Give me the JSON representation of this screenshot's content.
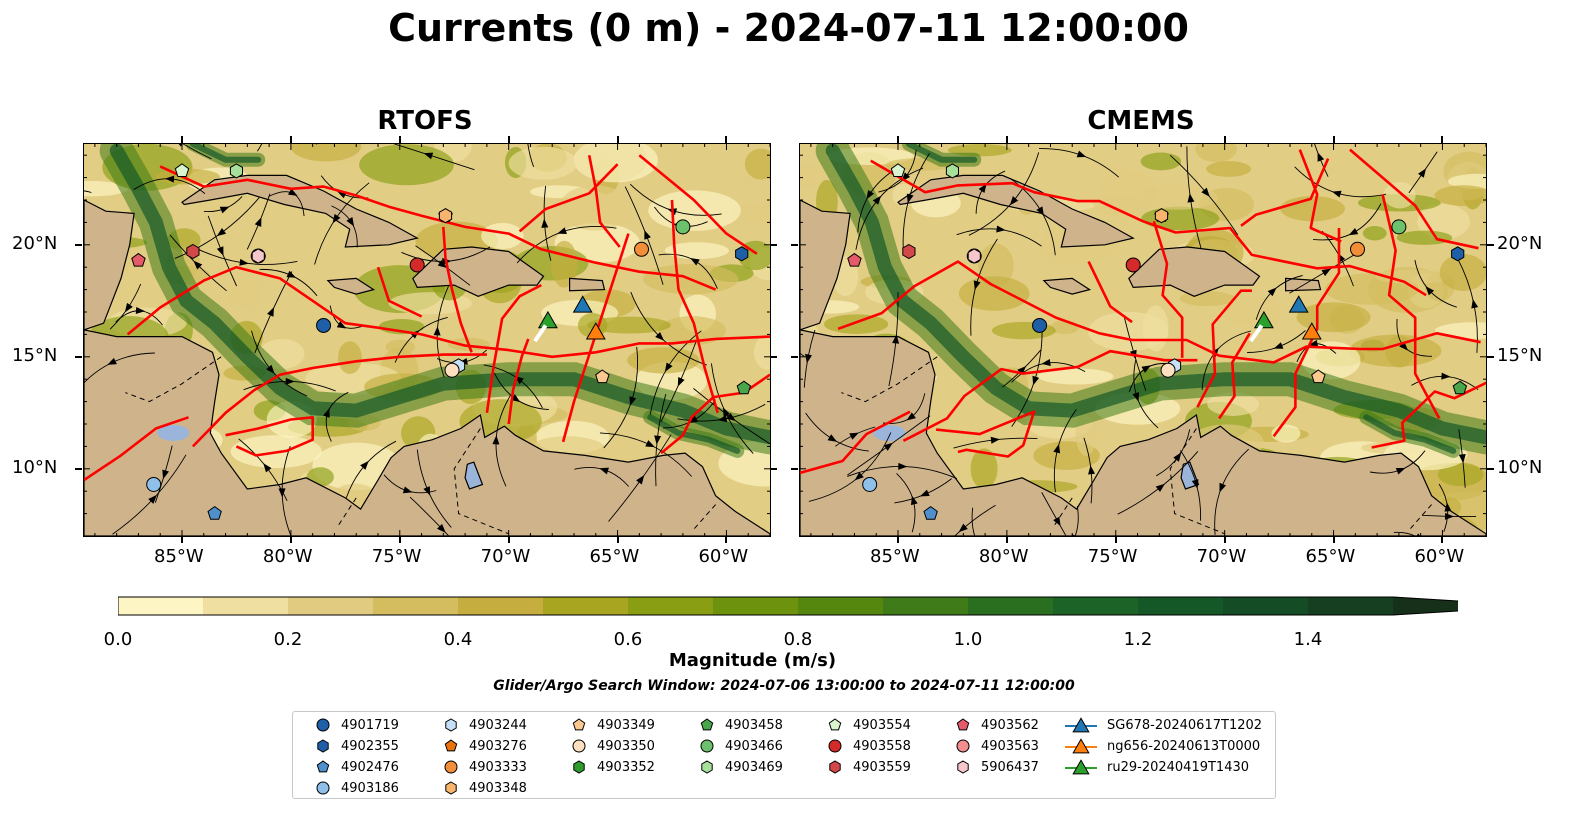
{
  "title": "Currents (0 m) - 2024-07-11 12:00:00",
  "panels": [
    {
      "title": "RTOFS"
    },
    {
      "title": "CMEMS"
    }
  ],
  "axes": {
    "lon_labels": [
      "85°W",
      "80°W",
      "75°W",
      "70°W",
      "65°W",
      "60°W"
    ],
    "lat_labels": [
      "20°N",
      "15°N",
      "10°N"
    ],
    "extent": {
      "lon": [
        -89.5,
        -58.0
      ],
      "lat": [
        7.0,
        24.5
      ]
    }
  },
  "colorbar": {
    "label": "Magnitude (m/s)",
    "ticks": [
      "0.0",
      "0.2",
      "0.4",
      "0.6",
      "0.8",
      "1.0",
      "1.2",
      "1.4"
    ],
    "range": [
      0.0,
      1.5
    ],
    "extend": "max",
    "colors": [
      "#fdf6c4",
      "#efe0a2",
      "#e0cb80",
      "#d3bd5f",
      "#c5ad3f",
      "#a8a521",
      "#8a9e14",
      "#6d930e",
      "#55870f",
      "#3f7b18",
      "#2a6e20",
      "#1c6328",
      "#155828",
      "#144c25",
      "#163f21",
      "#17301a"
    ]
  },
  "search_window": "Glider/Argo Search Window: 2024-07-06 13:00:00 to 2024-07-11 12:00:00",
  "legend": [
    {
      "label": "4901719",
      "marker": "circle",
      "color": "#1f5fa8"
    },
    {
      "label": "4902355",
      "marker": "hexagon",
      "color": "#1f5fa8"
    },
    {
      "label": "4902476",
      "marker": "pentagon",
      "color": "#4f8fcb"
    },
    {
      "label": "4903186",
      "marker": "circle",
      "color": "#8ec0ea"
    },
    {
      "label": "4903244",
      "marker": "hexagon",
      "color": "#c6e0f7"
    },
    {
      "label": "4903276",
      "marker": "pentagon",
      "color": "#e8730c"
    },
    {
      "label": "4903333",
      "marker": "circle",
      "color": "#f28e37"
    },
    {
      "label": "4903348",
      "marker": "hexagon",
      "color": "#f8b46d"
    },
    {
      "label": "4903349",
      "marker": "pentagon",
      "color": "#fbc98f"
    },
    {
      "label": "4903350",
      "marker": "circle",
      "color": "#fde0bf"
    },
    {
      "label": "4903352",
      "marker": "hexagon",
      "color": "#2c9b2c"
    },
    {
      "label": "4903458",
      "marker": "pentagon",
      "color": "#4aa64a"
    },
    {
      "label": "4903466",
      "marker": "circle",
      "color": "#6cc26c"
    },
    {
      "label": "4903469",
      "marker": "hexagon",
      "color": "#a6e09b"
    },
    {
      "label": "4903554",
      "marker": "pentagon",
      "color": "#d8f5cf"
    },
    {
      "label": "4903558",
      "marker": "circle",
      "color": "#d42a2a"
    },
    {
      "label": "4903559",
      "marker": "hexagon",
      "color": "#d24848"
    },
    {
      "label": "4903562",
      "marker": "pentagon",
      "color": "#e45a68"
    },
    {
      "label": "4903563",
      "marker": "circle",
      "color": "#f28e8e"
    },
    {
      "label": "5906437",
      "marker": "hexagon",
      "color": "#f7c6cc"
    },
    {
      "label": "SG678-20240617T1202",
      "marker": "triangle-line",
      "color": "#1f77b4"
    },
    {
      "label": "ng656-20240613T0000",
      "marker": "triangle-line",
      "color": "#ff7f0e"
    },
    {
      "label": "ru29-20240419T1430",
      "marker": "triangle-line",
      "color": "#2ca02c"
    }
  ],
  "map_colors": {
    "land": "#cfb38b",
    "water_body": "#9ab5d9",
    "track": "#ff0000",
    "streamline": "#000000"
  }
}
